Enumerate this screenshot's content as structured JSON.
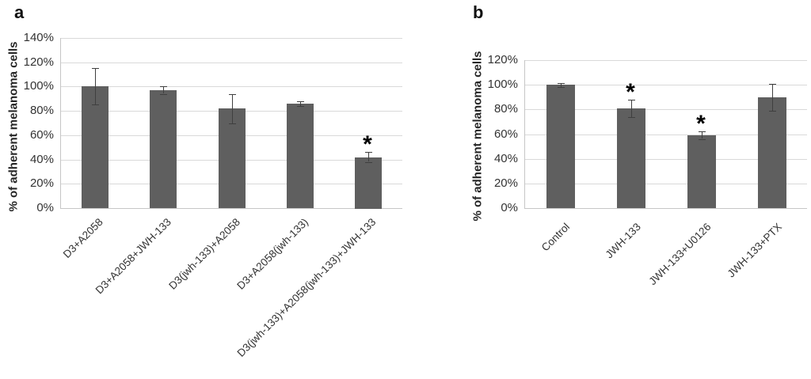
{
  "figure": {
    "background": "#ffffff",
    "bar_fill_color": "#5f5f5f",
    "error_bar_color": "#3f3f3f",
    "gridline_color": "#d9d9d9",
    "axis_line_color": "#c6c6c6",
    "text_color": "#333333",
    "significance_marker": "*"
  },
  "chart_data": [
    {
      "id": "a",
      "type": "bar",
      "panel_label": "a",
      "title": "",
      "xlabel": "",
      "ylabel": "% of adherent melanoma cells",
      "ylim": [
        0,
        140
      ],
      "ytick_step": 20,
      "yticks": [
        0,
        20,
        40,
        60,
        80,
        100,
        120,
        140
      ],
      "ytick_labels": [
        "0%",
        "20%",
        "40%",
        "60%",
        "80%",
        "100%",
        "120%",
        "140%"
      ],
      "grid": true,
      "legend": "none",
      "categories": [
        "D3+A2058",
        "D3+A2058+JWH-133",
        "D3(jwh-133)+A2058",
        "D3+A2058(jwh-133)",
        "D3(jwh-133)+A2058(jwh-133)+JWH-133"
      ],
      "values": [
        100,
        97,
        82,
        86,
        42
      ],
      "errors": [
        15,
        3,
        12,
        2,
        4
      ],
      "significant": [
        false,
        false,
        false,
        false,
        true
      ]
    },
    {
      "id": "b",
      "type": "bar",
      "panel_label": "b",
      "title": "",
      "xlabel": "",
      "ylabel": "% of adherent melanoma cells",
      "ylim": [
        0,
        120
      ],
      "ytick_step": 20,
      "yticks": [
        0,
        20,
        40,
        60,
        80,
        100,
        120
      ],
      "ytick_labels": [
        "0%",
        "20%",
        "40%",
        "60%",
        "80%",
        "100%",
        "120%"
      ],
      "grid": true,
      "legend": "none",
      "categories": [
        "Control",
        "JWH-133",
        "JWH-133+U0126",
        "JWH-133+PTX"
      ],
      "values": [
        100,
        81,
        59,
        90
      ],
      "errors": [
        1.5,
        7,
        3,
        11
      ],
      "significant": [
        false,
        true,
        true,
        false
      ]
    }
  ]
}
